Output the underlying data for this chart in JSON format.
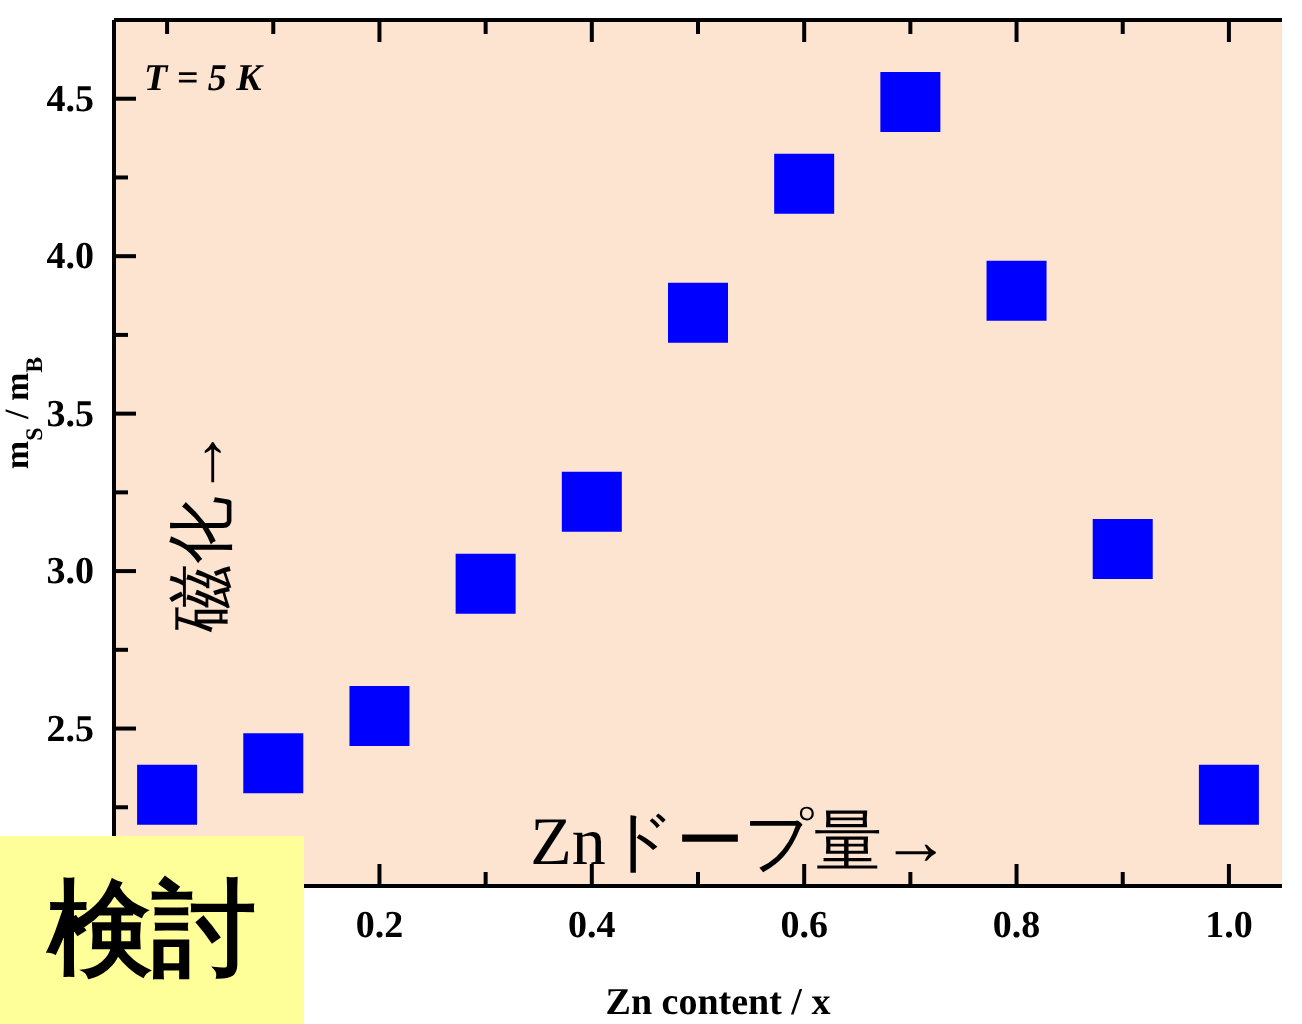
{
  "chart_data": {
    "type": "scatter",
    "xlabel": "Zn content / x",
    "ylabel": "m$_{S}$ / m$_{B}$",
    "x": [
      0,
      0.1,
      0.2,
      0.3,
      0.4,
      0.5,
      0.6,
      0.7,
      0.8,
      0.9,
      1.0
    ],
    "series": [
      {
        "color": "#0000ff",
        "values": [
          2.29,
          2.39,
          2.54,
          2.96,
          3.22,
          3.82,
          4.23,
          4.49,
          3.89,
          3.07,
          2.29
        ]
      }
    ],
    "xlim": [
      -0.05,
      1.05
    ],
    "ylim": [
      2.0,
      4.75
    ],
    "xticks": [
      {
        "value": 0,
        "label": null
      },
      {
        "value": 0.1,
        "label": null
      },
      {
        "value": 0.2,
        "label": "0.2"
      },
      {
        "value": 0.3,
        "label": null
      },
      {
        "value": 0.4,
        "label": "0.4"
      },
      {
        "value": 0.5,
        "label": null
      },
      {
        "value": 0.6,
        "label": "0.6"
      },
      {
        "value": 0.7,
        "label": null
      },
      {
        "value": 0.8,
        "label": "0.8"
      },
      {
        "value": 0.9,
        "label": null
      },
      {
        "value": 1.0,
        "label": "1.0"
      }
    ],
    "yticks": [
      {
        "value": 2.25,
        "label": null
      },
      {
        "value": 2.5,
        "label": "2.5"
      },
      {
        "value": 2.75,
        "label": null
      },
      {
        "value": 3.0,
        "label": "3.0"
      },
      {
        "value": 3.25,
        "label": null
      },
      {
        "value": 3.5,
        "label": "3.5"
      },
      {
        "value": 3.75,
        "label": null
      },
      {
        "value": 4.0,
        "label": "4.0"
      },
      {
        "value": 4.25,
        "label": null
      },
      {
        "value": 4.5,
        "label": "4.5"
      }
    ],
    "marker": "square",
    "annotations": [
      "T = 5 K",
      "磁化→",
      "Znドープ量→",
      "検討"
    ]
  }
}
